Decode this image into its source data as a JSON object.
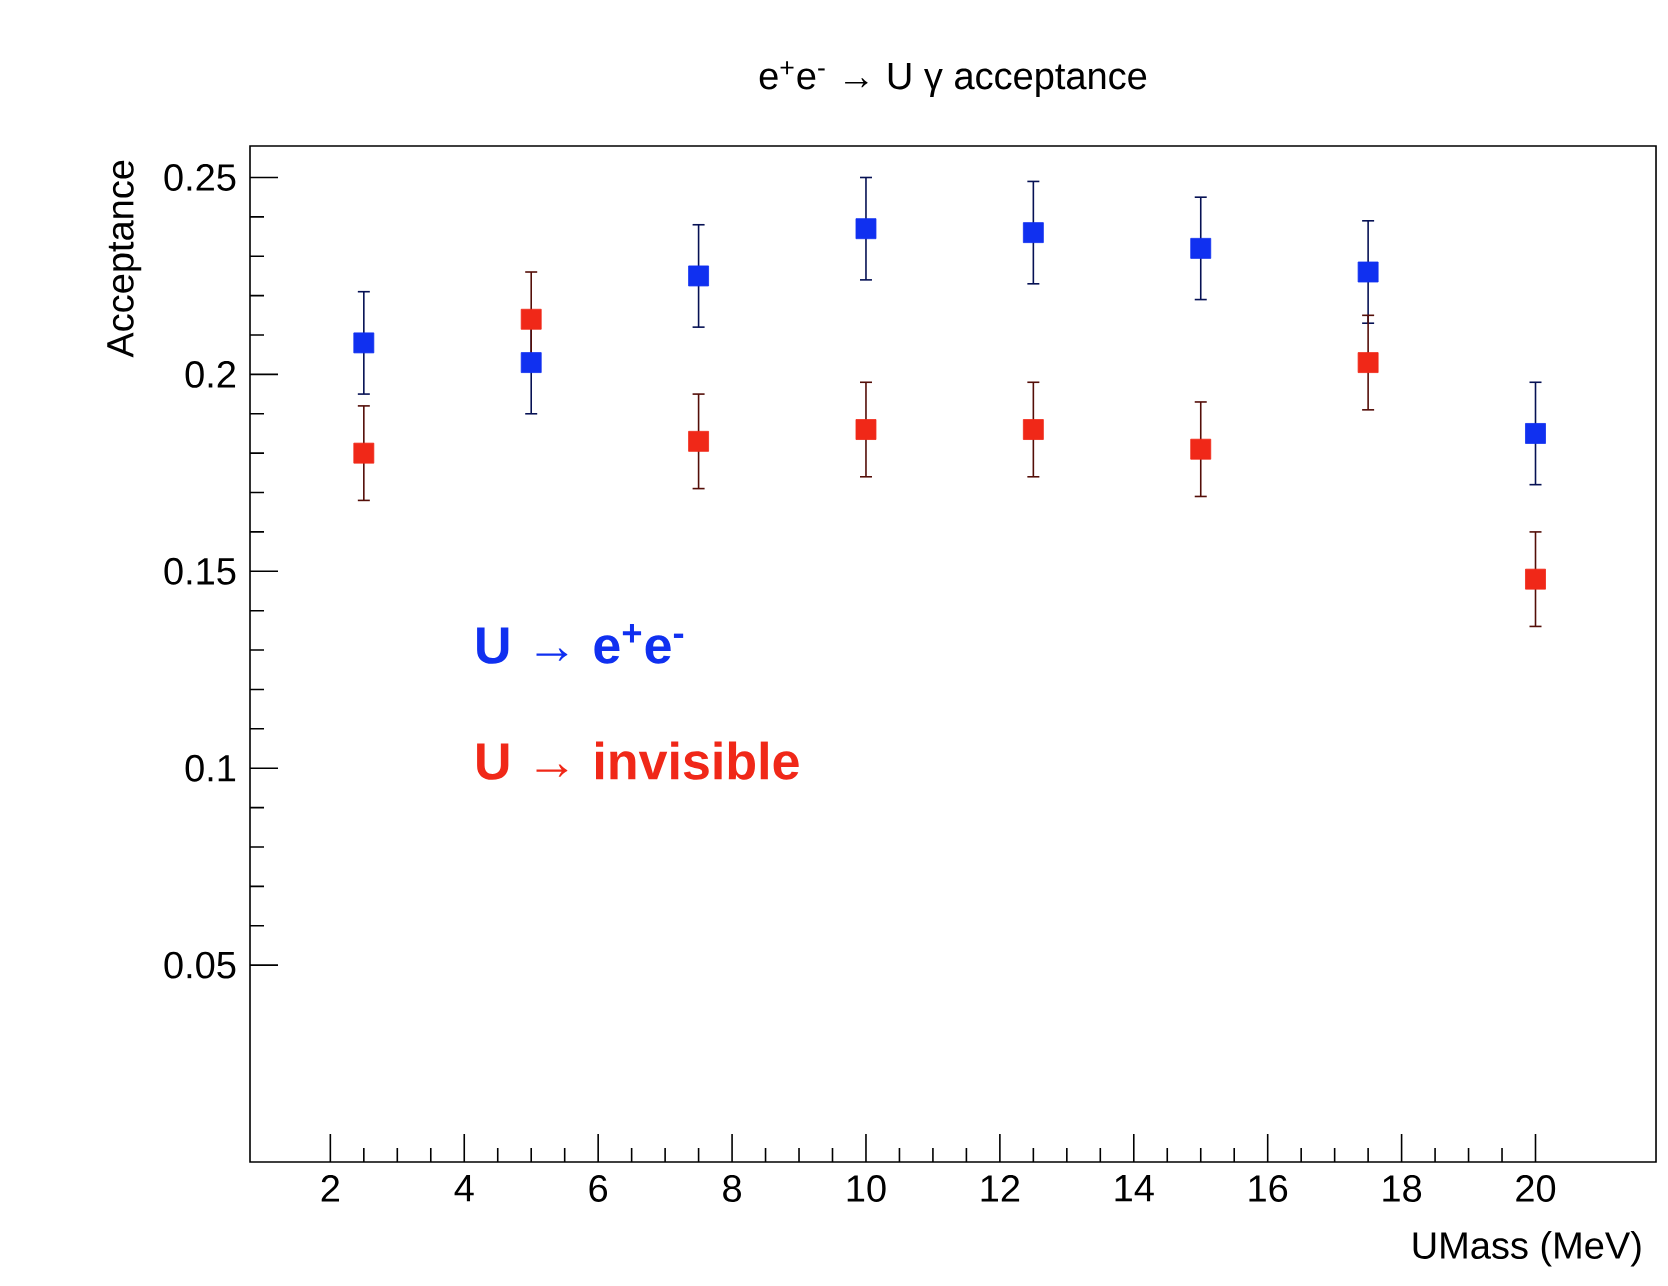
{
  "chart_data": {
    "type": "scatter",
    "title": "e$^{+}$e$^{-}$ → U γ acceptance",
    "xlabel": "UMass (MeV)",
    "ylabel": "Acceptance",
    "x": [
      2.5,
      5,
      7.5,
      10,
      12.5,
      15,
      17.5,
      20
    ],
    "series": [
      {
        "name": "U → e$^{+}$e$^{-}$",
        "color": "#1030f0",
        "values": [
          0.208,
          0.203,
          0.225,
          0.237,
          0.236,
          0.232,
          0.226,
          0.185
        ],
        "errors": [
          0.013,
          0.013,
          0.013,
          0.013,
          0.013,
          0.013,
          0.013,
          0.013
        ]
      },
      {
        "name": "U → invisible",
        "color": "#f02818",
        "values": [
          0.18,
          0.214,
          0.183,
          0.186,
          0.186,
          0.181,
          0.203,
          0.148
        ],
        "errors": [
          0.012,
          0.012,
          0.012,
          0.012,
          0.012,
          0.012,
          0.012,
          0.012
        ]
      }
    ],
    "xlim": [
      0.8,
      21.8
    ],
    "ylim": [
      0,
      0.258
    ],
    "xticks": [
      2,
      4,
      6,
      8,
      10,
      12,
      14,
      16,
      18,
      20
    ],
    "yticks": [
      0.05,
      0.1,
      0.15,
      0.2,
      0.25
    ],
    "marker": "square",
    "grid": false
  }
}
